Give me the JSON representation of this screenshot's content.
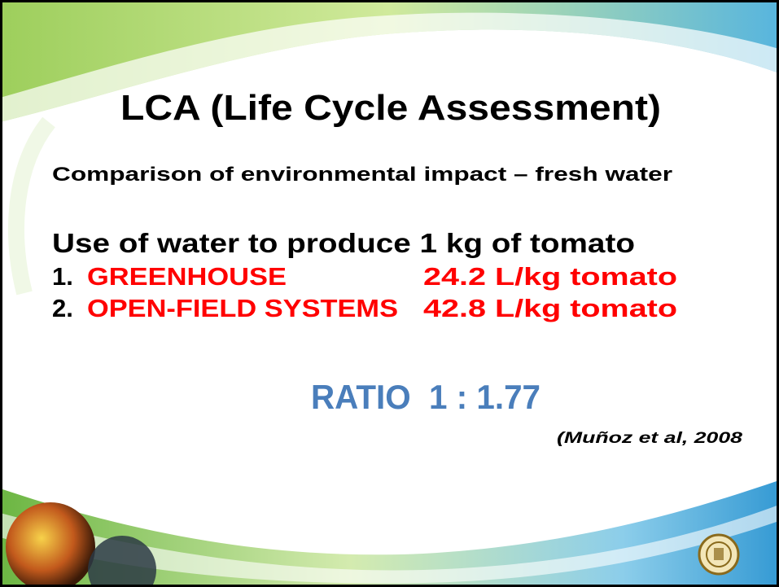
{
  "slide": {
    "title": "LCA (Life Cycle Assessment)",
    "subtitle": "Comparison of environmental impact – fresh water",
    "heading": "Use of water to produce 1 kg of tomato",
    "items": [
      {
        "number": "1.",
        "label": "GREENHOUSE",
        "value": "24.2 L/kg tomato"
      },
      {
        "number": "2.",
        "label": "OPEN-FIELD SYSTEMS",
        "value": "42.8 L/kg tomato"
      }
    ],
    "ratio": "RATIO  1 : 1.77",
    "citation": "(Muñoz et al, 2008"
  }
}
